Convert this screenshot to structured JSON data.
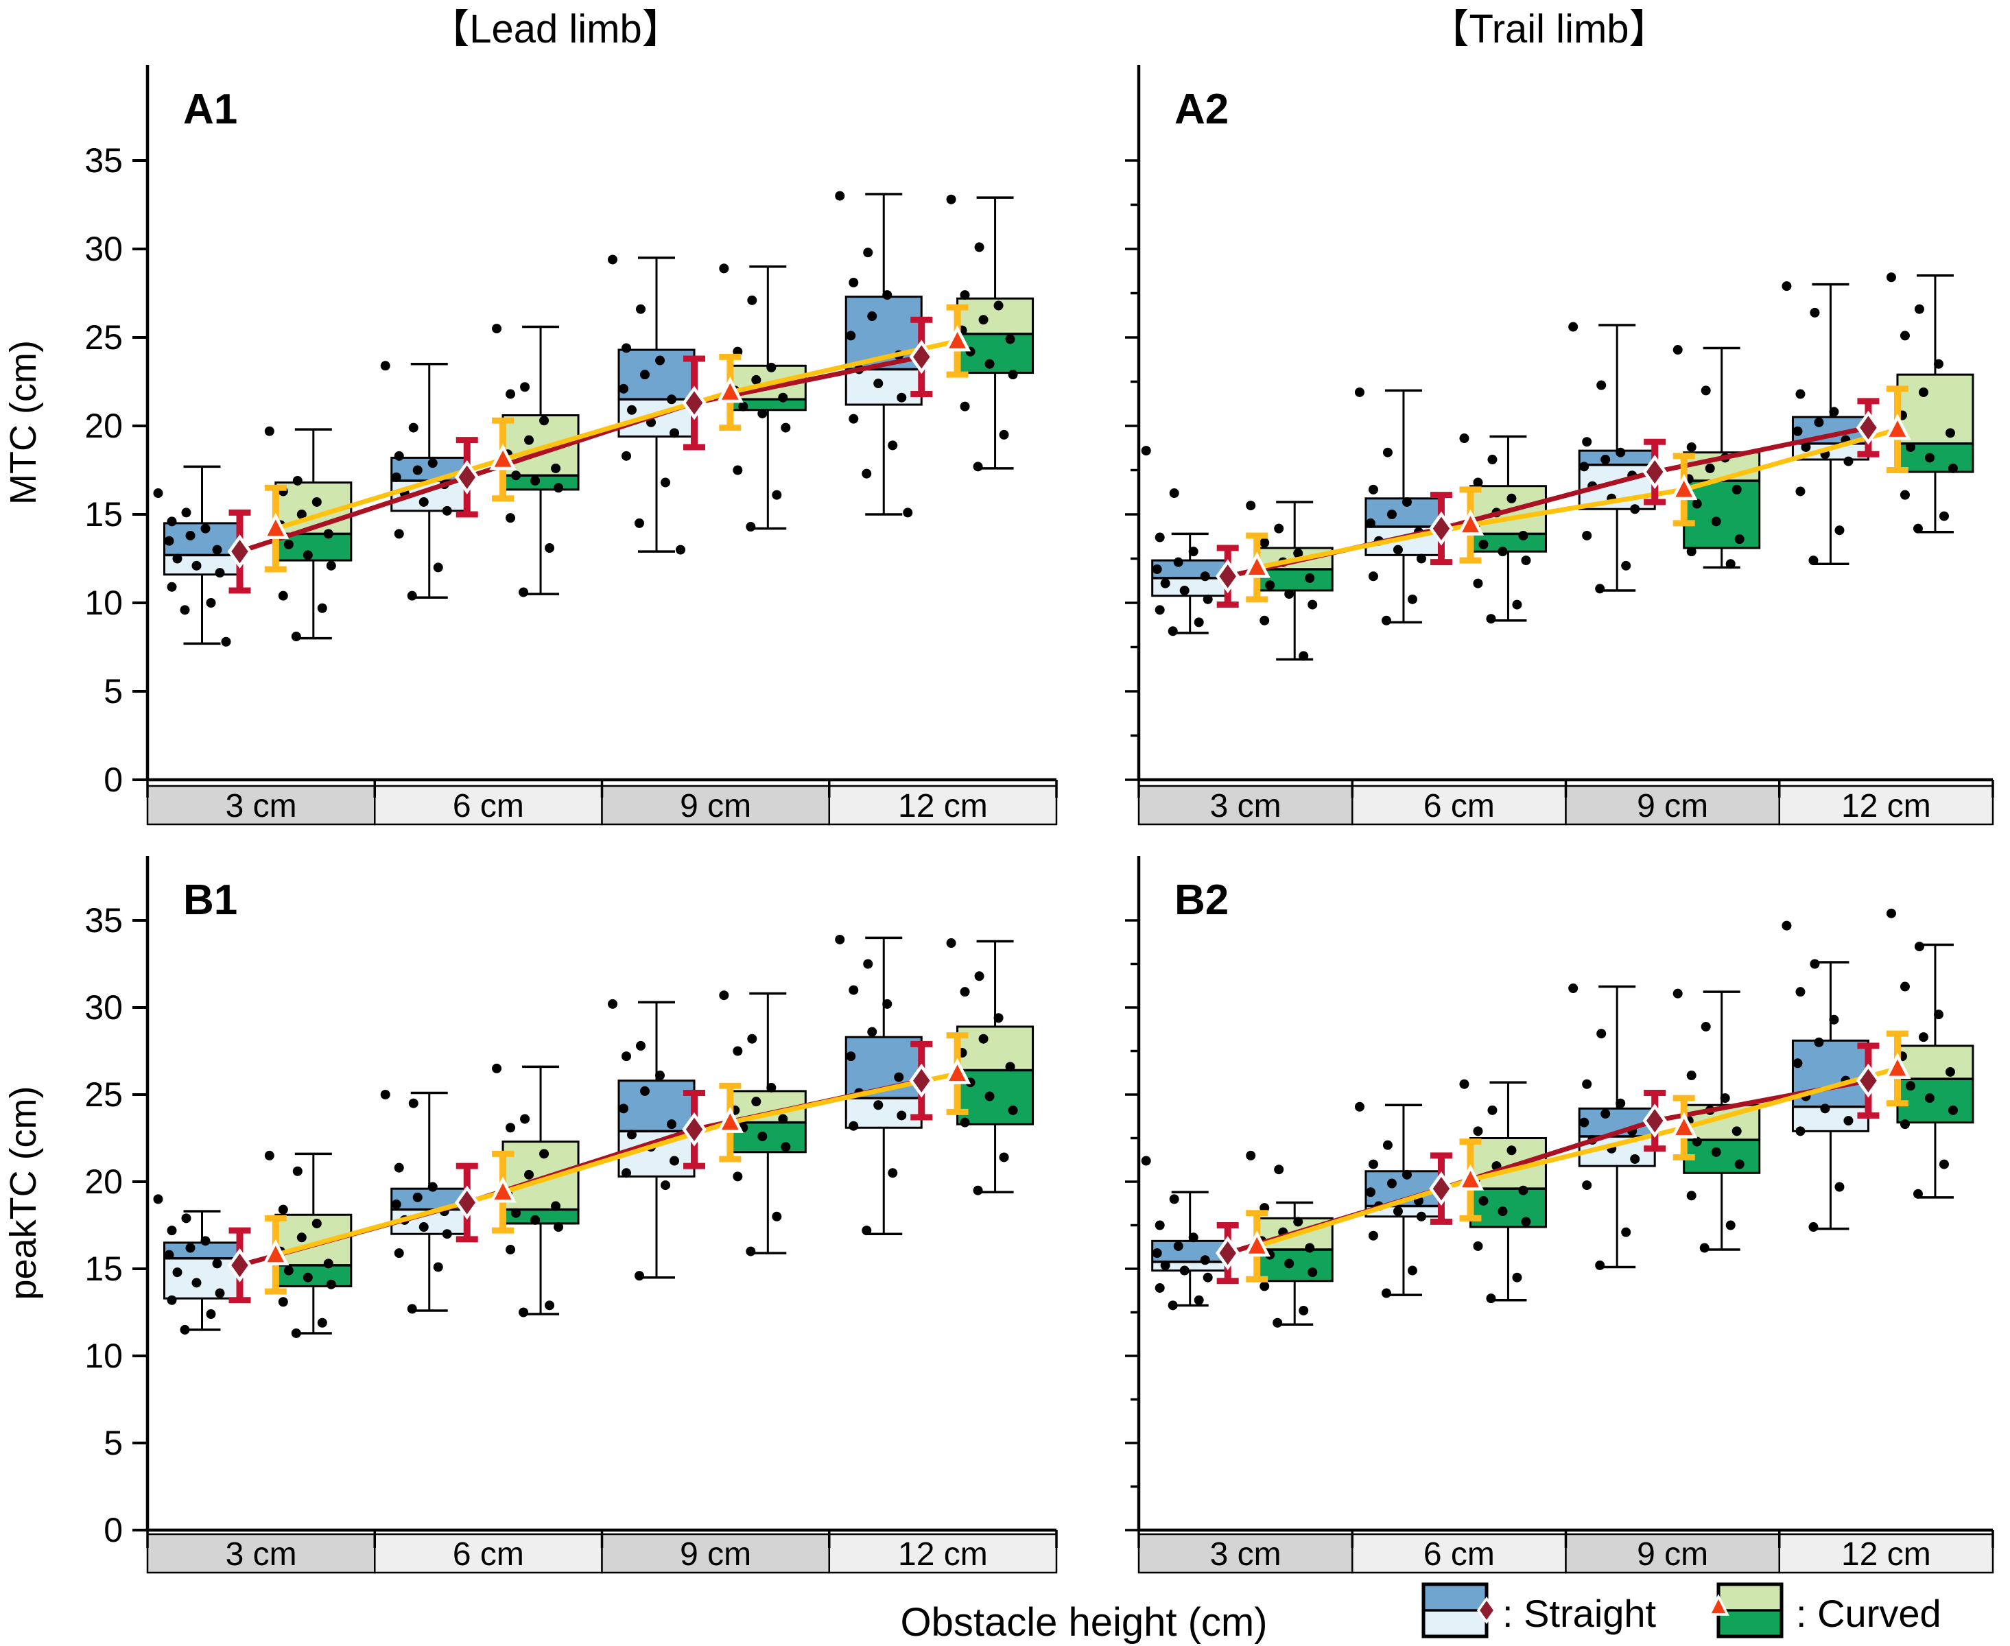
{
  "figure": {
    "column_titles": [
      {
        "id": "lead",
        "label": "【Lead limb】"
      },
      {
        "id": "trail",
        "label": "【Trail limb】"
      }
    ],
    "xlabel": "Obstacle height (cm)",
    "legend": [
      {
        "key": "straight",
        "label": ": Straight",
        "marker": "diamond"
      },
      {
        "key": "curved",
        "label": ": Curved",
        "marker": "triangle"
      }
    ],
    "colors": {
      "straight_box_upper": "#6FA5CF",
      "straight_box_lower": "#E3F1F9",
      "curved_box_upper": "#CFE6AE",
      "curved_box_lower": "#12A35A",
      "straight_mean_fill": "#8C1C2E",
      "straight_err": "#C41230",
      "straight_trend": "#AA1122",
      "curved_mean_fill": "#F23C12",
      "curved_err": "#FFB81C",
      "curved_trend": "#FFC20E",
      "band_dark": "#D4D4D4",
      "band_light": "#EFEFEF",
      "dot": "#000000",
      "axis": "#000000",
      "marker_outline": "#FFFFFF"
    }
  },
  "chart_data": [
    {
      "type": "box",
      "id": "A1",
      "panel_label": "A1",
      "column": "lead",
      "row": "A",
      "ylabel": "MTC (cm)",
      "yticks": [
        0,
        5,
        10,
        15,
        20,
        25,
        30,
        35
      ],
      "ylim": [
        0,
        40
      ],
      "categories": [
        "3 cm",
        "6 cm",
        "9 cm",
        "12 cm"
      ],
      "groups": [
        {
          "category": "3 cm",
          "straight": {
            "whislo": 7.7,
            "q1": 11.6,
            "med": 12.7,
            "q3": 14.5,
            "whishi": 17.7,
            "mean": 12.9,
            "sd": 2.2,
            "points": [
              16.2,
              15.1,
              14.6,
              14.2,
              13.8,
              13.5,
              13.0,
              12.5,
              12.1,
              11.7,
              10.9,
              10.0,
              9.6,
              7.8
            ]
          },
          "curved": {
            "whislo": 8.0,
            "q1": 12.4,
            "med": 13.9,
            "q3": 16.8,
            "whishi": 19.8,
            "mean": 14.2,
            "sd": 2.3,
            "points": [
              19.7,
              16.9,
              16.3,
              15.7,
              15.0,
              14.4,
              13.9,
              13.3,
              12.7,
              12.1,
              10.4,
              9.7,
              8.1
            ]
          }
        },
        {
          "category": "6 cm",
          "straight": {
            "whislo": 10.3,
            "q1": 15.2,
            "med": 16.9,
            "q3": 18.2,
            "whishi": 23.5,
            "mean": 17.1,
            "sd": 2.1,
            "points": [
              23.4,
              19.9,
              18.3,
              17.9,
              17.5,
              17.1,
              16.7,
              16.2,
              15.7,
              15.2,
              13.9,
              12.0,
              10.4
            ]
          },
          "curved": {
            "whislo": 10.5,
            "q1": 16.4,
            "med": 17.2,
            "q3": 20.6,
            "whishi": 25.6,
            "mean": 18.1,
            "sd": 2.2,
            "points": [
              25.5,
              22.2,
              21.8,
              20.3,
              19.2,
              18.4,
              17.6,
              17.2,
              16.9,
              16.5,
              14.8,
              13.1,
              10.6
            ]
          }
        },
        {
          "category": "9 cm",
          "straight": {
            "whislo": 12.9,
            "q1": 19.4,
            "med": 21.5,
            "q3": 24.3,
            "whishi": 29.5,
            "mean": 21.3,
            "sd": 2.5,
            "points": [
              29.4,
              26.6,
              24.4,
              23.7,
              22.9,
              22.1,
              21.5,
              20.9,
              20.2,
              19.6,
              18.3,
              16.8,
              14.5,
              13.0
            ]
          },
          "curved": {
            "whislo": 14.2,
            "q1": 20.9,
            "med": 21.5,
            "q3": 23.4,
            "whishi": 29.0,
            "mean": 21.9,
            "sd": 2.0,
            "points": [
              28.9,
              27.1,
              24.2,
              23.3,
              22.6,
              22.0,
              21.6,
              21.1,
              20.7,
              19.9,
              17.5,
              16.1,
              14.3
            ]
          }
        },
        {
          "category": "12 cm",
          "straight": {
            "whislo": 15.0,
            "q1": 21.2,
            "med": 23.2,
            "q3": 27.3,
            "whishi": 33.1,
            "mean": 23.9,
            "sd": 2.1,
            "points": [
              33.0,
              29.8,
              28.1,
              27.4,
              26.2,
              25.1,
              24.0,
              23.2,
              22.4,
              21.6,
              20.4,
              18.9,
              17.3,
              15.1
            ]
          },
          "curved": {
            "whislo": 17.6,
            "q1": 23.0,
            "med": 25.2,
            "q3": 27.2,
            "whishi": 32.9,
            "mean": 24.8,
            "sd": 1.9,
            "points": [
              32.8,
              30.1,
              27.4,
              26.8,
              26.0,
              25.4,
              24.9,
              24.2,
              23.5,
              22.9,
              21.1,
              19.5,
              17.7
            ]
          }
        }
      ]
    },
    {
      "type": "box",
      "id": "A2",
      "panel_label": "A2",
      "column": "trail",
      "row": "A",
      "ylabel": "",
      "yticks": [
        0,
        5,
        10,
        15,
        20,
        25,
        30,
        35
      ],
      "ylim": [
        0,
        40
      ],
      "categories": [
        "3 cm",
        "6 cm",
        "9 cm",
        "12 cm"
      ],
      "groups": [
        {
          "category": "3 cm",
          "straight": {
            "whislo": 8.3,
            "q1": 10.4,
            "med": 11.4,
            "q3": 12.4,
            "whishi": 13.9,
            "mean": 11.5,
            "sd": 1.6,
            "points": [
              18.6,
              16.2,
              13.7,
              12.9,
              12.3,
              11.9,
              11.5,
              11.1,
              10.7,
              10.2,
              9.6,
              8.9,
              8.4
            ]
          },
          "curved": {
            "whislo": 6.8,
            "q1": 10.7,
            "med": 11.9,
            "q3": 13.1,
            "whishi": 15.7,
            "mean": 12.0,
            "sd": 1.8,
            "points": [
              15.5,
              14.2,
              13.4,
              12.8,
              12.3,
              11.9,
              11.4,
              11.0,
              10.5,
              9.9,
              9.0,
              7.0
            ]
          }
        },
        {
          "category": "6 cm",
          "straight": {
            "whislo": 8.9,
            "q1": 12.7,
            "med": 14.3,
            "q3": 15.9,
            "whishi": 22.0,
            "mean": 14.2,
            "sd": 1.9,
            "points": [
              21.9,
              18.5,
              16.4,
              15.7,
              15.0,
              14.5,
              14.0,
              13.5,
              13.0,
              12.5,
              11.5,
              10.2,
              9.0
            ]
          },
          "curved": {
            "whislo": 9.0,
            "q1": 12.9,
            "med": 13.9,
            "q3": 16.6,
            "whishi": 19.4,
            "mean": 14.4,
            "sd": 2.0,
            "points": [
              19.3,
              18.1,
              16.8,
              15.9,
              15.1,
              14.4,
              13.8,
              13.3,
              12.9,
              12.4,
              11.1,
              9.9,
              9.1
            ]
          }
        },
        {
          "category": "9 cm",
          "straight": {
            "whislo": 10.7,
            "q1": 15.3,
            "med": 17.8,
            "q3": 18.6,
            "whishi": 25.7,
            "mean": 17.4,
            "sd": 1.7,
            "points": [
              25.6,
              22.3,
              19.1,
              18.5,
              18.1,
              17.7,
              17.2,
              16.6,
              15.9,
              15.3,
              13.8,
              12.1,
              10.8
            ]
          },
          "curved": {
            "whislo": 12.0,
            "q1": 13.1,
            "med": 16.9,
            "q3": 18.5,
            "whishi": 24.4,
            "mean": 16.4,
            "sd": 1.9,
            "points": [
              24.3,
              22.0,
              18.8,
              18.2,
              17.6,
              17.0,
              16.4,
              15.6,
              14.6,
              13.6,
              12.9,
              12.2
            ]
          }
        },
        {
          "category": "12 cm",
          "straight": {
            "whislo": 12.2,
            "q1": 18.1,
            "med": 19.0,
            "q3": 20.5,
            "whishi": 28.0,
            "mean": 19.9,
            "sd": 1.5,
            "points": [
              27.9,
              26.4,
              21.8,
              20.8,
              20.2,
              19.7,
              19.2,
              18.8,
              18.4,
              18.0,
              16.3,
              14.1,
              12.4
            ]
          },
          "curved": {
            "whislo": 14.0,
            "q1": 17.4,
            "med": 19.0,
            "q3": 22.9,
            "whishi": 28.5,
            "mean": 19.8,
            "sd": 2.3,
            "points": [
              28.4,
              26.6,
              25.1,
              23.5,
              21.9,
              20.6,
              19.6,
              18.8,
              18.2,
              17.6,
              16.1,
              14.9,
              14.2
            ]
          }
        }
      ]
    },
    {
      "type": "box",
      "id": "B1",
      "panel_label": "B1",
      "column": "lead",
      "row": "B",
      "ylabel": "peakTC (cm)",
      "yticks": [
        0,
        5,
        10,
        15,
        20,
        25,
        30,
        35
      ],
      "ylim": [
        0,
        38.5
      ],
      "categories": [
        "3 cm",
        "6 cm",
        "9 cm",
        "12 cm"
      ],
      "groups": [
        {
          "category": "3 cm",
          "straight": {
            "whislo": 11.5,
            "q1": 13.3,
            "med": 15.6,
            "q3": 16.5,
            "whishi": 18.3,
            "mean": 15.2,
            "sd": 2.0,
            "points": [
              19.0,
              17.9,
              17.2,
              16.6,
              16.2,
              15.8,
              15.3,
              14.8,
              14.2,
              13.6,
              13.2,
              12.4,
              11.5
            ]
          },
          "curved": {
            "whislo": 11.3,
            "q1": 14.0,
            "med": 15.2,
            "q3": 18.1,
            "whishi": 21.6,
            "mean": 15.8,
            "sd": 2.1,
            "points": [
              21.5,
              20.6,
              18.4,
              17.6,
              16.8,
              16.0,
              15.3,
              14.9,
              14.5,
              14.1,
              13.1,
              11.9,
              11.3
            ]
          }
        },
        {
          "category": "6 cm",
          "straight": {
            "whislo": 12.6,
            "q1": 17.0,
            "med": 18.4,
            "q3": 19.6,
            "whishi": 25.1,
            "mean": 18.8,
            "sd": 2.1,
            "points": [
              25.0,
              24.5,
              20.8,
              19.7,
              19.1,
              18.7,
              18.3,
              17.8,
              17.4,
              17.0,
              15.9,
              15.1,
              12.7
            ]
          },
          "curved": {
            "whislo": 12.4,
            "q1": 17.6,
            "med": 18.4,
            "q3": 22.3,
            "whishi": 26.6,
            "mean": 19.4,
            "sd": 2.2,
            "points": [
              26.5,
              23.6,
              23.1,
              21.6,
              20.4,
              19.3,
              18.6,
              18.2,
              17.8,
              17.4,
              16.1,
              12.9,
              12.5
            ]
          }
        },
        {
          "category": "9 cm",
          "straight": {
            "whislo": 14.5,
            "q1": 20.3,
            "med": 22.9,
            "q3": 25.8,
            "whishi": 30.3,
            "mean": 23.0,
            "sd": 2.1,
            "points": [
              30.2,
              27.8,
              27.2,
              26.1,
              25.2,
              24.2,
              23.3,
              22.7,
              22.0,
              21.2,
              20.5,
              19.8,
              14.6
            ]
          },
          "curved": {
            "whislo": 15.9,
            "q1": 21.7,
            "med": 23.4,
            "q3": 25.2,
            "whishi": 30.8,
            "mean": 23.4,
            "sd": 2.1,
            "points": [
              30.7,
              28.2,
              27.5,
              25.4,
              24.6,
              24.1,
              23.6,
              23.1,
              22.6,
              22.0,
              20.3,
              18.0,
              16.0
            ]
          }
        },
        {
          "category": "12 cm",
          "straight": {
            "whislo": 17.0,
            "q1": 23.1,
            "med": 24.8,
            "q3": 28.3,
            "whishi": 34.0,
            "mean": 25.8,
            "sd": 2.1,
            "points": [
              33.9,
              32.5,
              31.0,
              30.2,
              28.6,
              27.2,
              26.0,
              25.1,
              24.4,
              23.8,
              23.2,
              20.5,
              17.2
            ]
          },
          "curved": {
            "whislo": 19.4,
            "q1": 23.3,
            "med": 26.4,
            "q3": 28.9,
            "whishi": 33.8,
            "mean": 26.2,
            "sd": 2.2,
            "points": [
              33.7,
              31.8,
              30.9,
              29.4,
              28.2,
              27.4,
              26.6,
              25.7,
              24.9,
              24.1,
              23.4,
              21.4,
              19.5
            ]
          }
        }
      ]
    },
    {
      "type": "box",
      "id": "B2",
      "panel_label": "B2",
      "column": "trail",
      "row": "B",
      "ylabel": "",
      "yticks": [
        0,
        5,
        10,
        15,
        20,
        25,
        30,
        35
      ],
      "ylim": [
        0,
        38.5
      ],
      "categories": [
        "3 cm",
        "6 cm",
        "9 cm",
        "12 cm"
      ],
      "groups": [
        {
          "category": "3 cm",
          "straight": {
            "whislo": 12.9,
            "q1": 14.9,
            "med": 15.4,
            "q3": 16.6,
            "whishi": 19.4,
            "mean": 15.9,
            "sd": 1.6,
            "points": [
              21.2,
              19.0,
              17.5,
              16.8,
              16.3,
              15.9,
              15.5,
              15.2,
              14.9,
              14.5,
              13.9,
              13.2,
              12.9
            ]
          },
          "curved": {
            "whislo": 11.8,
            "q1": 14.3,
            "med": 16.1,
            "q3": 17.9,
            "whishi": 18.8,
            "mean": 16.3,
            "sd": 1.9,
            "points": [
              21.5,
              20.7,
              18.5,
              17.7,
              17.1,
              16.6,
              16.2,
              15.8,
              15.3,
              14.8,
              14.0,
              12.6,
              11.9
            ]
          }
        },
        {
          "category": "6 cm",
          "straight": {
            "whislo": 13.5,
            "q1": 18.0,
            "med": 18.6,
            "q3": 20.6,
            "whishi": 24.4,
            "mean": 19.6,
            "sd": 1.9,
            "points": [
              24.3,
              22.1,
              21.0,
              20.4,
              19.9,
              19.4,
              18.9,
              18.6,
              18.3,
              18.0,
              16.9,
              14.9,
              13.6
            ]
          },
          "curved": {
            "whislo": 13.2,
            "q1": 17.4,
            "med": 19.6,
            "q3": 22.5,
            "whishi": 25.7,
            "mean": 20.1,
            "sd": 2.2,
            "points": [
              25.6,
              24.1,
              22.9,
              21.8,
              20.9,
              20.1,
              19.5,
              18.9,
              18.3,
              17.7,
              16.3,
              14.5,
              13.3
            ]
          }
        },
        {
          "category": "9 cm",
          "straight": {
            "whislo": 15.1,
            "q1": 20.9,
            "med": 22.6,
            "q3": 24.2,
            "whishi": 31.2,
            "mean": 23.5,
            "sd": 1.6,
            "points": [
              31.1,
              28.5,
              25.6,
              24.5,
              23.9,
              23.4,
              22.9,
              22.4,
              21.9,
              21.3,
              19.8,
              17.1,
              15.2
            ]
          },
          "curved": {
            "whislo": 16.1,
            "q1": 20.5,
            "med": 22.4,
            "q3": 24.4,
            "whishi": 30.9,
            "mean": 23.1,
            "sd": 1.7,
            "points": [
              30.8,
              28.9,
              26.1,
              24.8,
              24.1,
              23.5,
              22.9,
              22.3,
              21.7,
              21.0,
              19.2,
              17.5,
              16.2
            ]
          }
        },
        {
          "category": "12 cm",
          "straight": {
            "whislo": 17.3,
            "q1": 22.9,
            "med": 24.3,
            "q3": 28.1,
            "whishi": 32.6,
            "mean": 25.8,
            "sd": 2.0,
            "points": [
              34.7,
              32.5,
              30.9,
              29.3,
              28.0,
              26.8,
              25.8,
              24.9,
              24.2,
              23.5,
              22.9,
              19.7,
              17.4
            ]
          },
          "curved": {
            "whislo": 19.1,
            "q1": 23.4,
            "med": 25.9,
            "q3": 27.8,
            "whishi": 33.6,
            "mean": 26.5,
            "sd": 2.0,
            "points": [
              35.4,
              33.5,
              31.2,
              29.6,
              28.3,
              27.2,
              26.3,
              25.5,
              24.8,
              24.1,
              23.3,
              21.0,
              19.3
            ]
          }
        }
      ]
    }
  ]
}
